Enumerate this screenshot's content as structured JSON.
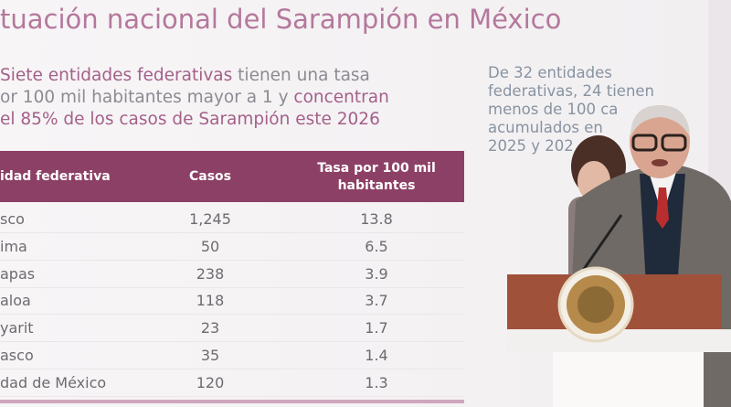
{
  "slide": {
    "title": "tuación nacional del Sarampión en México",
    "subtitle": {
      "line1_highlight": "Siete entidades federativas",
      "line1_rest": " tienen una tasa",
      "line2_rest": "or 100 mil habitantes mayor a 1 y ",
      "line2_highlight": "concentran",
      "line3_highlight": "el 85% de los casos de Sarampión este 2026"
    },
    "side_note": [
      "De 32 entidades",
      "federativas, 24 tienen",
      "menos de 100 ca",
      "acumulados en",
      "2025 y 202"
    ],
    "table": {
      "headers": [
        "idad federativa",
        "Casos",
        "Tasa por 100 mil habitantes"
      ],
      "rows": [
        [
          "sco",
          "1,245",
          "13.8"
        ],
        [
          "ima",
          "50",
          "6.5"
        ],
        [
          "apas",
          "238",
          "3.9"
        ],
        [
          "aloa",
          "118",
          "3.7"
        ],
        [
          "yarit",
          "23",
          "1.7"
        ],
        [
          "asco",
          "35",
          "1.4"
        ],
        [
          "dad de México",
          "120",
          "1.3"
        ]
      ]
    }
  },
  "colors": {
    "header": "#8d4066",
    "title": "#b4789c",
    "podium": "#a0513a"
  }
}
